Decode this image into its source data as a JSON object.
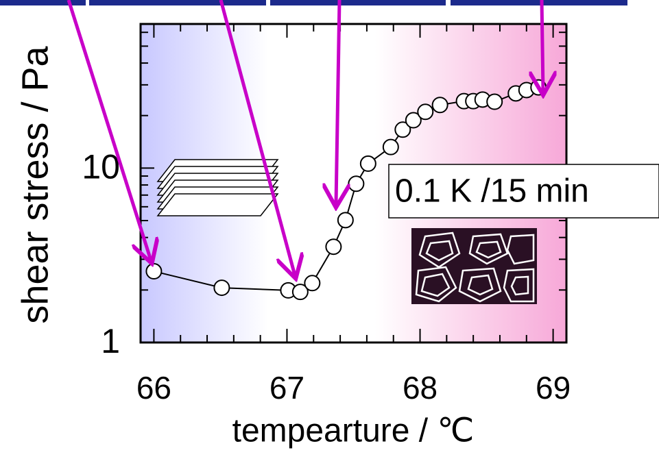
{
  "chart_data": {
    "type": "line",
    "x_label": "tempearture / ℃",
    "y_label": "shear stress / Pa",
    "annotation": "0.1 K /15 min",
    "yscale": "log",
    "xlim": [
      65.9,
      69.1
    ],
    "ylim": [
      1,
      67
    ],
    "xticks": [
      66,
      67,
      68,
      69
    ],
    "yticks": [
      1,
      10
    ],
    "x_minor_ticks": [
      66.2,
      66.4,
      66.6,
      66.8,
      67.2,
      67.4,
      67.6,
      67.8,
      68.2,
      68.4,
      68.6,
      68.8
    ],
    "y_minor_ticks": [
      2,
      3,
      4,
      5,
      6,
      7,
      8,
      9,
      20,
      30,
      40,
      50,
      60
    ],
    "series": [
      {
        "color": "#000000",
        "x": [
          66.0,
          66.51,
          67.01,
          67.1,
          67.19,
          67.35,
          67.44,
          67.52,
          67.61,
          67.78,
          67.87,
          67.95,
          68.04,
          68.15,
          68.33,
          68.4,
          68.47,
          68.56,
          68.72,
          68.8,
          68.89
        ],
        "values": [
          2.56,
          2.06,
          1.99,
          1.95,
          2.19,
          3.54,
          5.03,
          8.13,
          10.6,
          13.2,
          16.6,
          18.8,
          21.0,
          23.0,
          24.2,
          24.2,
          24.7,
          24.0,
          26.8,
          28.0,
          29.0
        ]
      }
    ]
  }
}
